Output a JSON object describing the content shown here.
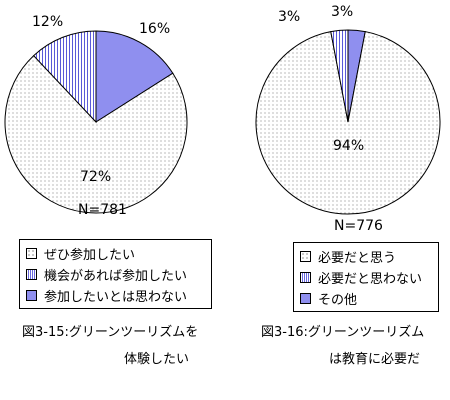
{
  "chart_data": [
    {
      "type": "pie",
      "n_label": "N=781",
      "slices": [
        {
          "label": "ぜひ参加したい",
          "value": 72,
          "value_label": "72%",
          "pattern": "dots",
          "color": "#ffffff"
        },
        {
          "label": "機会があれば参加したい",
          "value": 12,
          "value_label": "12%",
          "pattern": "vstripe",
          "color": "#6a6ae0"
        },
        {
          "label": "参加したいとは思わない",
          "value": 16,
          "value_label": "16%",
          "pattern": "solid",
          "color": "#8f8fef"
        }
      ],
      "legend_placement": "bottom",
      "caption_line1": "図3-15:グリーンツーリズムを",
      "caption_line2": "体験したい"
    },
    {
      "type": "pie",
      "n_label": "N=776",
      "slices": [
        {
          "label": "必要だと思う",
          "value": 94,
          "value_label": "94%",
          "pattern": "dots",
          "color": "#ffffff"
        },
        {
          "label": "必要だと思わない",
          "value": 3,
          "value_label": "3%",
          "pattern": "vstripe",
          "color": "#6a6ae0"
        },
        {
          "label": "その他",
          "value": 3,
          "value_label": "3%",
          "pattern": "solid",
          "color": "#8f8fef"
        }
      ],
      "legend_placement": "bottom",
      "caption_line1": "図3-16:グリーンツーリズム",
      "caption_line2": "は教育に必要だ"
    }
  ]
}
